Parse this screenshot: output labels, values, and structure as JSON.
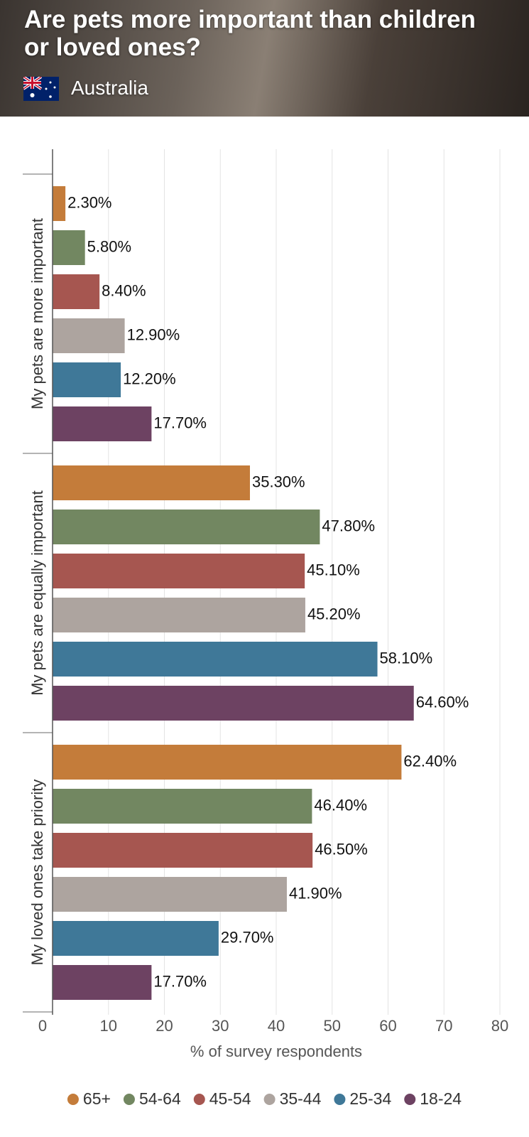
{
  "chart_data": {
    "type": "bar",
    "orientation": "horizontal",
    "title": "Are pets more important than children or loved ones?",
    "subtitle": "Australia",
    "x_label": "% of survey respondents",
    "categories": [
      "My pets are more important",
      "My pets are equally important",
      "My loved ones take priority"
    ],
    "series": [
      {
        "name": "65+",
        "color": "#c47c3a",
        "values": [
          2.3,
          35.3,
          62.4
        ],
        "value_labels": [
          "2.30%",
          "35.30%",
          "62.40%"
        ]
      },
      {
        "name": "54-64",
        "color": "#728761",
        "values": [
          5.8,
          47.8,
          46.4
        ],
        "value_labels": [
          "5.80%",
          "47.80%",
          "46.40%"
        ]
      },
      {
        "name": "45-54",
        "color": "#a65650",
        "values": [
          8.4,
          45.1,
          46.5
        ],
        "value_labels": [
          "8.40%",
          "45.10%",
          "46.50%"
        ]
      },
      {
        "name": "35-44",
        "color": "#ada49f",
        "values": [
          12.9,
          45.2,
          41.9
        ],
        "value_labels": [
          "12.90%",
          "45.20%",
          "41.90%"
        ]
      },
      {
        "name": "25-34",
        "color": "#3f7898",
        "values": [
          12.2,
          58.1,
          29.7
        ],
        "value_labels": [
          "12.20%",
          "58.10%",
          "29.70%"
        ]
      },
      {
        "name": "18-24",
        "color": "#6d4262",
        "values": [
          17.7,
          64.6,
          17.7
        ],
        "value_labels": [
          "17.70%",
          "64.60%",
          "17.70%"
        ]
      }
    ],
    "xlim": [
      0,
      80
    ],
    "xticks": [
      0,
      10,
      20,
      30,
      40,
      50,
      60,
      70,
      80
    ],
    "grid": true,
    "legend": "bottom"
  }
}
